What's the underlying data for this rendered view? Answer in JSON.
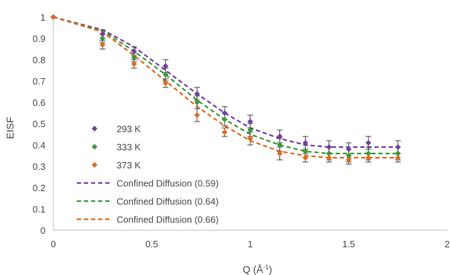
{
  "chart_data": {
    "type": "scatter",
    "xlabel": "Q (Å",
    "xlabel_sup": "-1",
    "xlabel_close": ")",
    "ylabel": "EISF",
    "xlim": [
      0,
      2
    ],
    "ylim": [
      0,
      1
    ],
    "x_ticks": [
      0,
      0.5,
      1,
      1.5,
      2
    ],
    "x_tick_labels": [
      "0",
      "0.5",
      "1",
      "1.5",
      "2"
    ],
    "y_ticks": [
      0,
      0.1,
      0.2,
      0.3,
      0.4,
      0.5,
      0.6,
      0.7,
      0.8,
      0.9,
      1
    ],
    "y_tick_labels": [
      "0",
      "0.1",
      "0.2",
      "0.3",
      "0.4",
      "0.5",
      "0.6",
      "0.7",
      "0.8",
      "0.9",
      "1"
    ],
    "grid": false,
    "legend_position": "lower-left",
    "series": [
      {
        "name": "293 K",
        "kind": "points",
        "marker": "diamond",
        "color": "#7040a0",
        "x": [
          0,
          0.25,
          0.41,
          0.57,
          0.73,
          0.87,
          1.0,
          1.15,
          1.28,
          1.4,
          1.5,
          1.6,
          1.75
        ],
        "y": [
          1.0,
          0.92,
          0.84,
          0.77,
          0.64,
          0.55,
          0.51,
          0.44,
          0.41,
          0.39,
          0.38,
          0.41,
          0.39
        ],
        "err": [
          0,
          0.02,
          0.02,
          0.03,
          0.03,
          0.03,
          0.03,
          0.03,
          0.03,
          0.03,
          0.03,
          0.03,
          0.03
        ]
      },
      {
        "name": "333 K",
        "kind": "points",
        "marker": "diamond",
        "color": "#3a9a3a",
        "x": [
          0,
          0.25,
          0.41,
          0.57,
          0.73,
          0.87,
          1.0,
          1.15,
          1.28,
          1.4,
          1.5,
          1.6,
          1.75
        ],
        "y": [
          1.0,
          0.9,
          0.81,
          0.73,
          0.6,
          0.52,
          0.47,
          0.4,
          0.37,
          0.36,
          0.35,
          0.36,
          0.36
        ],
        "err": [
          0,
          0.02,
          0.02,
          0.03,
          0.03,
          0.03,
          0.03,
          0.03,
          0.03,
          0.03,
          0.03,
          0.03,
          0.03
        ]
      },
      {
        "name": "373 K",
        "kind": "points",
        "marker": "diamond",
        "color": "#e06a20",
        "x": [
          0,
          0.25,
          0.41,
          0.57,
          0.73,
          0.87,
          1.0,
          1.15,
          1.28,
          1.4,
          1.5,
          1.6,
          1.75
        ],
        "y": [
          1.0,
          0.87,
          0.78,
          0.69,
          0.54,
          0.46,
          0.43,
          0.36,
          0.34,
          0.34,
          0.33,
          0.34,
          0.34
        ],
        "err": [
          0,
          0.02,
          0.02,
          0.02,
          0.03,
          0.02,
          0.03,
          0.03,
          0.02,
          0.02,
          0.02,
          0.02,
          0.02
        ]
      },
      {
        "name": "Confined Diffusion (0.59)",
        "kind": "line",
        "color": "#7040a0",
        "x": [
          0,
          0.25,
          0.41,
          0.57,
          0.73,
          0.87,
          1.0,
          1.15,
          1.28,
          1.4,
          1.5,
          1.6,
          1.75
        ],
        "y": [
          1.0,
          0.94,
          0.86,
          0.75,
          0.64,
          0.55,
          0.48,
          0.43,
          0.4,
          0.39,
          0.39,
          0.39,
          0.39
        ]
      },
      {
        "name": "Confined Diffusion (0.64)",
        "kind": "line",
        "color": "#3a9a3a",
        "x": [
          0,
          0.25,
          0.41,
          0.57,
          0.73,
          0.87,
          1.0,
          1.15,
          1.28,
          1.4,
          1.5,
          1.6,
          1.75
        ],
        "y": [
          1.0,
          0.935,
          0.84,
          0.73,
          0.61,
          0.52,
          0.45,
          0.4,
          0.37,
          0.36,
          0.36,
          0.36,
          0.36
        ]
      },
      {
        "name": "Confined Diffusion (0.66)",
        "kind": "line",
        "color": "#e06a20",
        "x": [
          0,
          0.25,
          0.41,
          0.57,
          0.73,
          0.87,
          1.0,
          1.15,
          1.28,
          1.4,
          1.5,
          1.6,
          1.75
        ],
        "y": [
          1.0,
          0.93,
          0.82,
          0.7,
          0.58,
          0.49,
          0.42,
          0.37,
          0.35,
          0.34,
          0.34,
          0.34,
          0.34
        ]
      }
    ],
    "colors": {
      "axis": "#bfbfbf",
      "errorbar": "#404040",
      "text": "#4a4a4a"
    }
  }
}
